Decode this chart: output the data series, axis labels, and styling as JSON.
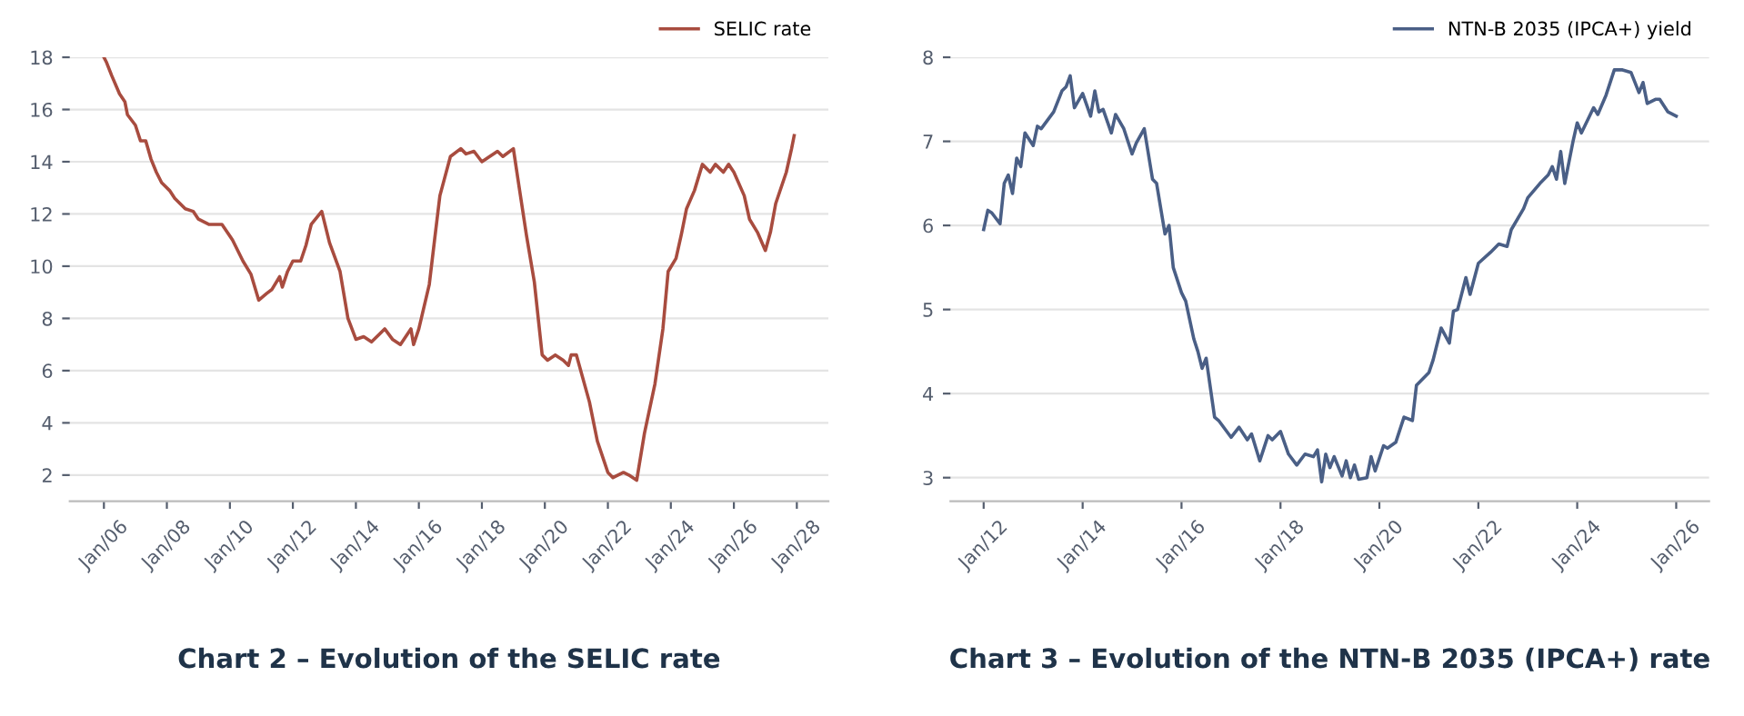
{
  "chart_data": [
    {
      "type": "line",
      "title": "Chart 2 – Evolution of the SELIC rate",
      "legend": "top right",
      "grid": "y",
      "xlim": [
        "2004-12",
        "2029-01"
      ],
      "ylim": [
        1,
        18
      ],
      "xticks": [
        {
          "value": "2006-01",
          "label": "Jan/06"
        },
        {
          "value": "2008-01",
          "label": "Jan/08"
        },
        {
          "value": "2010-01",
          "label": "Jan/10"
        },
        {
          "value": "2012-01",
          "label": "Jan/12"
        },
        {
          "value": "2014-01",
          "label": "Jan/14"
        },
        {
          "value": "2016-01",
          "label": "Jan/16"
        },
        {
          "value": "2018-01",
          "label": "Jan/18"
        },
        {
          "value": "2020-01",
          "label": "Jan/20"
        },
        {
          "value": "2022-01",
          "label": "Jan/22"
        },
        {
          "value": "2024-01",
          "label": "Jan/24"
        },
        {
          "value": "2026-01",
          "label": "Jan/26"
        },
        {
          "value": "2028-01",
          "label": "Jan/28"
        }
      ],
      "yticks": [
        2,
        4,
        6,
        8,
        10,
        12,
        14,
        16,
        18
      ],
      "x": [
        "2006-01",
        "2006-02",
        "2006-04",
        "2006-07",
        "2006-09",
        "2006-10",
        "2007-01",
        "2007-03",
        "2007-05",
        "2007-07",
        "2007-09",
        "2007-11",
        "2008-02",
        "2008-04",
        "2008-06",
        "2008-08",
        "2008-11",
        "2009-01",
        "2009-05",
        "2009-10",
        "2010-02",
        "2010-06",
        "2010-09",
        "2010-12",
        "2011-03",
        "2011-05",
        "2011-08",
        "2011-09",
        "2011-11",
        "2012-01",
        "2012-04",
        "2012-06",
        "2012-08",
        "2012-12",
        "2013-03",
        "2013-07",
        "2013-10",
        "2014-01",
        "2014-04",
        "2014-07",
        "2014-10",
        "2014-12",
        "2015-03",
        "2015-06",
        "2015-10",
        "2015-11",
        "2016-01",
        "2016-05",
        "2016-07",
        "2016-09",
        "2017-01",
        "2017-05",
        "2017-07",
        "2017-10",
        "2018-01",
        "2018-04",
        "2018-07",
        "2018-09",
        "2019-01",
        "2019-03",
        "2019-06",
        "2019-09",
        "2019-12",
        "2020-02",
        "2020-05",
        "2020-08",
        "2020-10",
        "2020-11",
        "2021-01",
        "2021-06",
        "2021-09",
        "2022-01",
        "2022-03",
        "2022-07",
        "2022-09",
        "2022-12",
        "2023-03",
        "2023-07",
        "2023-10",
        "2023-12",
        "2024-03",
        "2024-05",
        "2024-07",
        "2024-10",
        "2025-01",
        "2025-04",
        "2025-06",
        "2025-09",
        "2025-11",
        "2026-01",
        "2026-05",
        "2026-07",
        "2026-10",
        "2027-01",
        "2027-03",
        "2027-05",
        "2027-09",
        "2027-11",
        "2027-12"
      ],
      "series": [
        {
          "name": "SELIC rate",
          "color": "#a84c3f",
          "values": [
            18.0,
            17.8,
            17.3,
            16.6,
            16.3,
            15.8,
            15.4,
            14.8,
            14.8,
            14.1,
            13.6,
            13.2,
            12.9,
            12.6,
            12.4,
            12.2,
            12.1,
            11.8,
            11.6,
            11.6,
            11.0,
            10.2,
            9.7,
            8.7,
            8.95,
            9.1,
            9.6,
            9.2,
            9.8,
            10.2,
            10.2,
            10.8,
            11.6,
            12.1,
            10.9,
            9.8,
            8.0,
            7.2,
            7.3,
            7.1,
            7.4,
            7.6,
            7.2,
            7.0,
            7.6,
            7.0,
            7.6,
            9.3,
            11.0,
            12.7,
            14.2,
            14.5,
            14.3,
            14.4,
            14.0,
            14.2,
            14.4,
            14.2,
            14.5,
            13.2,
            11.2,
            9.4,
            6.6,
            6.4,
            6.6,
            6.4,
            6.2,
            6.6,
            6.6,
            4.8,
            3.3,
            2.1,
            1.9,
            2.1,
            2.0,
            1.8,
            3.6,
            5.5,
            7.6,
            9.8,
            10.3,
            11.2,
            12.2,
            12.9,
            13.9,
            13.6,
            13.9,
            13.6,
            13.9,
            13.6,
            12.7,
            11.8,
            11.3,
            10.6,
            11.3,
            12.4,
            13.6,
            14.5,
            15.0
          ]
        }
      ]
    },
    {
      "type": "line",
      "title": "Chart 3 – Evolution of the NTN-B 2035 (IPCA+) rate",
      "legend": "top right",
      "grid": "y",
      "xlim": [
        "2011-05",
        "2026-09"
      ],
      "ylim": [
        2.72,
        8
      ],
      "xticks": [
        {
          "value": "2012-01",
          "label": "Jan/12"
        },
        {
          "value": "2014-01",
          "label": "Jan/14"
        },
        {
          "value": "2016-01",
          "label": "Jan/16"
        },
        {
          "value": "2018-01",
          "label": "Jan/18"
        },
        {
          "value": "2020-01",
          "label": "Jan/20"
        },
        {
          "value": "2022-01",
          "label": "Jan/22"
        },
        {
          "value": "2024-01",
          "label": "Jan/24"
        },
        {
          "value": "2026-01",
          "label": "Jan/26"
        }
      ],
      "yticks": [
        3,
        4,
        5,
        6,
        7,
        8
      ],
      "x": [
        "2012-01",
        "2012-02",
        "2012-03",
        "2012-05",
        "2012-06",
        "2012-07",
        "2012-08",
        "2012-09",
        "2012-10",
        "2012-11",
        "2013-01",
        "2013-02",
        "2013-03",
        "2013-06",
        "2013-08",
        "2013-09",
        "2013-10",
        "2013-11",
        "2014-01",
        "2014-03",
        "2014-04",
        "2014-05",
        "2014-06",
        "2014-08",
        "2014-09",
        "2014-11",
        "2015-01",
        "2015-02",
        "2015-04",
        "2015-06",
        "2015-07",
        "2015-09",
        "2015-10",
        "2015-11",
        "2016-01",
        "2016-02",
        "2016-04",
        "2016-05",
        "2016-06",
        "2016-07",
        "2016-09",
        "2016-10",
        "2017-01",
        "2017-03",
        "2017-05",
        "2017-06",
        "2017-08",
        "2017-10",
        "2017-11",
        "2018-01",
        "2018-03",
        "2018-05",
        "2018-07",
        "2018-09",
        "2018-10",
        "2018-11",
        "2018-12",
        "2019-01",
        "2019-02",
        "2019-04",
        "2019-05",
        "2019-06",
        "2019-07",
        "2019-08",
        "2019-10",
        "2019-11",
        "2019-12",
        "2020-02",
        "2020-03",
        "2020-05",
        "2020-07",
        "2020-09",
        "2020-10",
        "2021-01",
        "2021-02",
        "2021-04",
        "2021-06",
        "2021-07",
        "2021-08",
        "2021-10",
        "2021-11",
        "2022-01",
        "2022-04",
        "2022-06",
        "2022-08",
        "2022-09",
        "2022-12",
        "2023-01",
        "2023-04",
        "2023-06",
        "2023-07",
        "2023-08",
        "2023-09",
        "2023-10",
        "2023-12",
        "2024-01",
        "2024-02",
        "2024-05",
        "2024-06",
        "2024-08",
        "2024-10",
        "2024-12",
        "2025-02",
        "2025-04",
        "2025-05",
        "2025-06",
        "2025-08",
        "2025-09",
        "2025-11",
        "2026-01"
      ],
      "series": [
        {
          "name": "NTN-B 2035 (IPCA+) yield",
          "color": "#4a5f86",
          "values": [
            5.95,
            6.18,
            6.15,
            6.02,
            6.5,
            6.6,
            6.38,
            6.8,
            6.7,
            7.1,
            6.95,
            7.18,
            7.15,
            7.35,
            7.6,
            7.65,
            7.78,
            7.4,
            7.57,
            7.3,
            7.6,
            7.35,
            7.38,
            7.1,
            7.32,
            7.15,
            6.85,
            6.98,
            7.15,
            6.55,
            6.5,
            5.9,
            6.0,
            5.5,
            5.2,
            5.1,
            4.65,
            4.5,
            4.3,
            4.42,
            3.72,
            3.68,
            3.48,
            3.6,
            3.45,
            3.52,
            3.2,
            3.5,
            3.45,
            3.55,
            3.28,
            3.15,
            3.28,
            3.25,
            3.33,
            2.95,
            3.28,
            3.12,
            3.25,
            3.02,
            3.2,
            3.0,
            3.15,
            2.98,
            3.0,
            3.25,
            3.08,
            3.38,
            3.35,
            3.42,
            3.72,
            3.68,
            4.1,
            4.25,
            4.4,
            4.78,
            4.6,
            4.98,
            5.0,
            5.38,
            5.18,
            5.55,
            5.68,
            5.78,
            5.75,
            5.95,
            6.2,
            6.33,
            6.5,
            6.6,
            6.7,
            6.55,
            6.88,
            6.5,
            7.0,
            7.22,
            7.1,
            7.4,
            7.32,
            7.55,
            7.85,
            7.85,
            7.82,
            7.58,
            7.7,
            7.45,
            7.5,
            7.5,
            7.35,
            7.3
          ]
        }
      ]
    }
  ]
}
